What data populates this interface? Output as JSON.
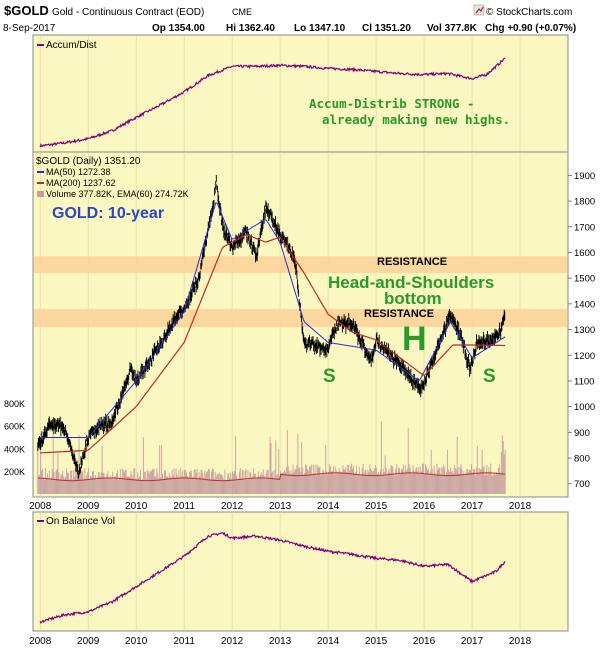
{
  "header": {
    "symbol": "$GOLD",
    "name": "Gold - Continuous Contract (EOD)",
    "exchange": "CME",
    "date": "8-Sep-2017",
    "op": "Op 1354.00",
    "hi": "Hi 1362.40",
    "lo": "Lo 1347.10",
    "cl": "Cl 1351.20",
    "vol": "Vol 377.8K",
    "chg": "Chg +0.90 (+0.07%)",
    "credit": "© StockCharts.com",
    "credit_icon": "arrow-up-right-icon"
  },
  "colors": {
    "panel_bg": "#fbf7c0",
    "resistance_band": "#fcd49a",
    "ma50": "#2a2ad4",
    "ma200": "#c02a2a",
    "annotation_green": "#2a9a2a",
    "annotation_blue": "#2a46c8",
    "price_bar": "#000000",
    "volume_bar": "#c8a0a0",
    "vol_ema": "#c02a2a",
    "indicator_line": "#800080"
  },
  "chart_data": [
    {
      "type": "line",
      "panel": "top",
      "legend": [
        "Accum/Dist"
      ],
      "annotation": [
        "Accum-Distrib STRONG -",
        "already making new highs."
      ],
      "x": [
        "2008.0",
        "2008.5",
        "2009.0",
        "2009.5",
        "2010.0",
        "2010.5",
        "2011.0",
        "2011.5",
        "2012.0",
        "2012.5",
        "2013.0",
        "2013.5",
        "2014.0",
        "2014.5",
        "2015.0",
        "2015.5",
        "2016.0",
        "2016.5",
        "2017.0",
        "2017.3",
        "2017.5",
        "2017.69"
      ],
      "values": [
        2,
        5,
        9,
        17,
        30,
        42,
        55,
        71,
        80,
        80,
        81,
        80,
        78,
        77,
        75,
        73,
        72,
        73,
        68,
        72,
        80,
        88
      ]
    },
    {
      "type": "line",
      "panel": "middle",
      "title": "$GOLD (Daily) 1351.20",
      "legend": [
        "MA(50) 1272.38",
        "MA(200) 1237.62",
        "Volume 377.82K, EMA(60) 274.72K"
      ],
      "watermark": "GOLD: 10-year",
      "yticks": [
        700,
        800,
        900,
        1000,
        1100,
        1200,
        1300,
        1400,
        1500,
        1600,
        1700,
        1800,
        1900
      ],
      "volume_ticks": [
        "800K",
        "600K",
        "400K",
        "200K"
      ],
      "xticks": [
        "2008",
        "2009",
        "2010",
        "2011",
        "2012",
        "2013",
        "2014",
        "2015",
        "2016",
        "2017",
        "2018"
      ],
      "ylim": [
        660,
        1960
      ],
      "annotations": {
        "resistance_upper": "RESISTANCE",
        "resistance_lower": "RESISTANCE",
        "pattern_line1": "Head-and-Shoulders",
        "pattern_line2": "bottom",
        "left_shoulder": "S",
        "head": "H",
        "right_shoulder": "S"
      },
      "resistance_zones": [
        [
          1520,
          1585
        ],
        [
          1310,
          1380
        ]
      ],
      "series": [
        {
          "name": "Price",
          "x": [
            "2008.0",
            "2008.2",
            "2008.5",
            "2008.8",
            "2009.0",
            "2009.2",
            "2009.5",
            "2009.9",
            "2010.0",
            "2010.5",
            "2010.9",
            "2011.0",
            "2011.3",
            "2011.6",
            "2011.67",
            "2011.8",
            "2012.0",
            "2012.3",
            "2012.5",
            "2012.7",
            "2013.0",
            "2013.3",
            "2013.5",
            "2014.0",
            "2014.2",
            "2014.5",
            "2014.9",
            "2015.0",
            "2015.5",
            "2015.9",
            "2016.0",
            "2016.3",
            "2016.55",
            "2016.8",
            "2016.96",
            "2017.1",
            "2017.4",
            "2017.6",
            "2017.69"
          ],
          "values": [
            850,
            930,
            920,
            740,
            880,
            920,
            940,
            1150,
            1100,
            1240,
            1370,
            1380,
            1500,
            1780,
            1880,
            1700,
            1620,
            1680,
            1580,
            1780,
            1670,
            1580,
            1250,
            1220,
            1330,
            1320,
            1180,
            1260,
            1160,
            1070,
            1090,
            1240,
            1360,
            1260,
            1140,
            1250,
            1260,
            1300,
            1351
          ]
        },
        {
          "name": "MA(50) 1272.38",
          "x": [
            "2008.0",
            "2009.0",
            "2010.0",
            "2011.0",
            "2011.67",
            "2012.0",
            "2012.7",
            "2013.0",
            "2013.5",
            "2014.0",
            "2015.0",
            "2015.9",
            "2016.55",
            "2017.0",
            "2017.69"
          ],
          "values": [
            880,
            880,
            1100,
            1370,
            1800,
            1650,
            1730,
            1640,
            1330,
            1250,
            1220,
            1100,
            1330,
            1190,
            1272
          ]
        },
        {
          "name": "MA(200) 1237.62",
          "x": [
            "2008.0",
            "2009.0",
            "2010.0",
            "2011.0",
            "2011.8",
            "2012.3",
            "2012.7",
            "2013.0",
            "2013.5",
            "2014.0",
            "2014.5",
            "2015.0",
            "2016.0",
            "2016.6",
            "2017.0",
            "2017.69"
          ],
          "values": [
            820,
            830,
            1000,
            1250,
            1620,
            1670,
            1640,
            1660,
            1520,
            1360,
            1290,
            1260,
            1120,
            1240,
            1240,
            1238
          ]
        }
      ]
    },
    {
      "type": "line",
      "panel": "bottom",
      "legend": [
        "On Balance Vol"
      ],
      "x": [
        "2008.0",
        "2008.5",
        "2009.0",
        "2009.5",
        "2010.0",
        "2010.5",
        "2011.0",
        "2011.5",
        "2011.8",
        "2012.0",
        "2012.5",
        "2013.0",
        "2013.5",
        "2014.0",
        "2014.5",
        "2015.0",
        "2015.5",
        "2016.0",
        "2016.5",
        "2017.0",
        "2017.5",
        "2017.69"
      ],
      "values": [
        5,
        12,
        15,
        25,
        40,
        55,
        70,
        90,
        93,
        88,
        90,
        86,
        80,
        75,
        72,
        68,
        66,
        60,
        62,
        45,
        55,
        65
      ]
    }
  ]
}
